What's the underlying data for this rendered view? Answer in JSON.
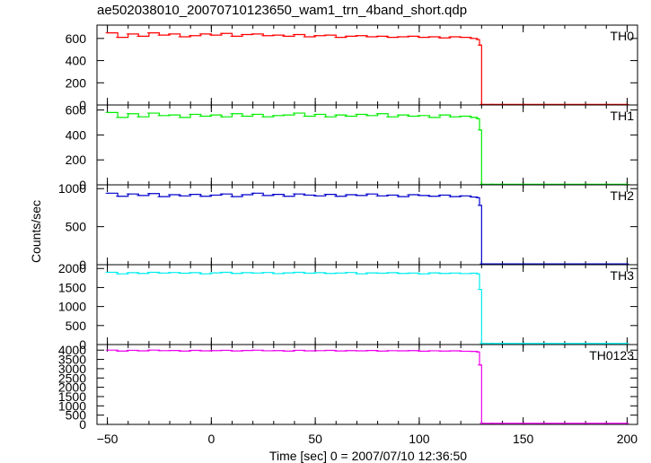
{
  "chart_data": {
    "type": "line",
    "title": "ae502038010_20070710123650_wam1_trn_4band_short.qdp",
    "xlabel": "Time [sec] 0 = 2007/07/10 12:36:50",
    "ylabel": "Counts/sec",
    "xlim": [
      -55,
      205
    ],
    "x_ticks": [
      "−50",
      "0",
      "50",
      "100",
      "150",
      "200"
    ],
    "x_tick_values": [
      -50,
      0,
      50,
      100,
      150,
      200
    ],
    "series": [
      {
        "name": "TH0",
        "color": "#ff0000",
        "ylim": [
          0,
          720
        ],
        "y_ticks": [
          "0",
          "200",
          "400",
          "600"
        ],
        "y_tick_values": [
          0,
          200,
          400,
          600
        ],
        "x": [
          -50,
          -45,
          -40,
          -35,
          -30,
          -25,
          -20,
          -15,
          -10,
          -5,
          0,
          5,
          10,
          15,
          20,
          25,
          30,
          35,
          40,
          45,
          50,
          55,
          60,
          65,
          70,
          75,
          80,
          85,
          90,
          95,
          100,
          105,
          110,
          115,
          120,
          125,
          128,
          129,
          130,
          135,
          140,
          150,
          160,
          170,
          180,
          190,
          200
        ],
        "y": [
          650,
          610,
          640,
          620,
          650,
          630,
          640,
          615,
          625,
          640,
          630,
          645,
          620,
          635,
          640,
          625,
          630,
          620,
          635,
          615,
          625,
          630,
          610,
          620,
          625,
          615,
          620,
          610,
          615,
          620,
          610,
          615,
          605,
          615,
          610,
          600,
          590,
          540,
          5,
          5,
          5,
          5,
          5,
          5,
          5,
          5,
          5
        ]
      },
      {
        "name": "TH1",
        "color": "#00ee00",
        "ylim": [
          0,
          640
        ],
        "y_ticks": [
          "0",
          "200",
          "400",
          "600"
        ],
        "y_tick_values": [
          0,
          200,
          400,
          600
        ],
        "x": [
          -50,
          -45,
          -40,
          -35,
          -30,
          -25,
          -20,
          -15,
          -10,
          -5,
          0,
          5,
          10,
          15,
          20,
          25,
          30,
          35,
          40,
          45,
          50,
          55,
          60,
          65,
          70,
          75,
          80,
          85,
          90,
          95,
          100,
          105,
          110,
          115,
          120,
          125,
          128,
          129,
          130,
          135,
          140,
          150,
          160,
          170,
          180,
          190,
          200
        ],
        "y": [
          580,
          540,
          570,
          545,
          575,
          555,
          560,
          540,
          565,
          550,
          560,
          545,
          570,
          550,
          565,
          545,
          555,
          560,
          575,
          550,
          565,
          545,
          560,
          550,
          565,
          555,
          570,
          545,
          560,
          550,
          555,
          540,
          560,
          545,
          550,
          540,
          530,
          440,
          5,
          5,
          5,
          5,
          5,
          5,
          5,
          5,
          5
        ]
      },
      {
        "name": "TH2",
        "color": "#0000cc",
        "ylim": [
          0,
          1050
        ],
        "y_ticks": [
          "0",
          "500",
          "1000"
        ],
        "y_tick_values": [
          0,
          500,
          1000
        ],
        "x": [
          -50,
          -45,
          -40,
          -35,
          -30,
          -25,
          -20,
          -15,
          -10,
          -5,
          0,
          5,
          10,
          15,
          20,
          25,
          30,
          35,
          40,
          45,
          50,
          55,
          60,
          65,
          70,
          75,
          80,
          85,
          90,
          95,
          100,
          105,
          110,
          115,
          120,
          125,
          128,
          129,
          130,
          135,
          140,
          150,
          160,
          170,
          180,
          190,
          200
        ],
        "y": [
          940,
          900,
          930,
          910,
          935,
          895,
          920,
          905,
          925,
          900,
          915,
          930,
          895,
          920,
          940,
          910,
          925,
          900,
          930,
          915,
          905,
          925,
          900,
          920,
          910,
          930,
          905,
          915,
          895,
          920,
          910,
          900,
          915,
          895,
          905,
          890,
          880,
          780,
          10,
          10,
          10,
          10,
          10,
          10,
          10,
          10,
          10
        ]
      },
      {
        "name": "TH3",
        "color": "#00eeee",
        "ylim": [
          0,
          2100
        ],
        "y_ticks": [
          "0",
          "500",
          "1000",
          "1500",
          "2000"
        ],
        "y_tick_values": [
          0,
          500,
          1000,
          1500,
          2000
        ],
        "x": [
          -50,
          -45,
          -40,
          -35,
          -30,
          -25,
          -20,
          -15,
          -10,
          -5,
          0,
          5,
          10,
          15,
          20,
          25,
          30,
          35,
          40,
          45,
          50,
          55,
          60,
          65,
          70,
          75,
          80,
          85,
          90,
          95,
          100,
          105,
          110,
          115,
          120,
          125,
          128,
          129,
          130,
          135,
          140,
          150,
          160,
          170,
          180,
          190,
          200
        ],
        "y": [
          1900,
          1860,
          1890,
          1870,
          1900,
          1880,
          1895,
          1875,
          1890,
          1860,
          1885,
          1900,
          1870,
          1890,
          1880,
          1895,
          1865,
          1885,
          1900,
          1875,
          1890,
          1870,
          1880,
          1895,
          1860,
          1885,
          1875,
          1890,
          1870,
          1880,
          1860,
          1885,
          1870,
          1880,
          1865,
          1875,
          1860,
          1450,
          30,
          30,
          30,
          30,
          30,
          30,
          30,
          30,
          30
        ]
      },
      {
        "name": "TH0123",
        "color": "#ee00ee",
        "ylim": [
          0,
          4300
        ],
        "y_ticks": [
          "0",
          "500",
          "1000",
          "1500",
          "2000",
          "2500",
          "3000",
          "3500",
          "4000"
        ],
        "y_tick_values": [
          0,
          500,
          1000,
          1500,
          2000,
          2500,
          3000,
          3500,
          4000
        ],
        "x": [
          -50,
          -45,
          -40,
          -35,
          -30,
          -25,
          -20,
          -15,
          -10,
          -5,
          0,
          5,
          10,
          15,
          20,
          25,
          30,
          35,
          40,
          45,
          50,
          55,
          60,
          65,
          70,
          75,
          80,
          85,
          90,
          95,
          100,
          105,
          110,
          115,
          120,
          125,
          128,
          129,
          130,
          135,
          140,
          150,
          160,
          170,
          180,
          190,
          200
        ],
        "y": [
          4000,
          3950,
          3990,
          3960,
          4000,
          3970,
          3980,
          3950,
          3985,
          3960,
          3975,
          3990,
          3955,
          3980,
          3995,
          3965,
          3975,
          3950,
          3990,
          3960,
          3970,
          3985,
          3955,
          3975,
          3960,
          3980,
          3950,
          3970,
          3960,
          3975,
          3945,
          3965,
          3950,
          3960,
          3940,
          3930,
          3900,
          3200,
          60,
          60,
          60,
          60,
          60,
          60,
          60,
          60,
          60
        ]
      }
    ]
  }
}
